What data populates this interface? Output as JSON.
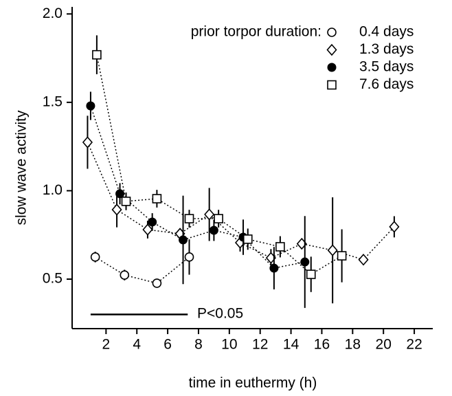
{
  "chart_data": {
    "type": "scatter",
    "xlabel": "time in euthermy (h)",
    "ylabel": "slow wave activity",
    "legend_title": "prior torpor duration:",
    "annotation": "P<0.05",
    "significance_bar": {
      "x": [
        1.0,
        7.3
      ],
      "y": 0.3
    },
    "xlim": [
      -0.2,
      23.2
    ],
    "ylim": [
      0.22,
      2.04
    ],
    "xticks": [
      2,
      4,
      6,
      8,
      10,
      12,
      14,
      16,
      18,
      20,
      22
    ],
    "yticks": [
      0.5,
      {
        "value": 1,
        "label": "1.0"
      },
      1.5,
      {
        "value": 2,
        "label": "2.0"
      }
    ],
    "series": [
      {
        "name": "0.4 days",
        "marker": "circle-open",
        "color": "#000000",
        "x": [
          1.3,
          3.2,
          5.3,
          7.4
        ],
        "values": [
          0.625,
          0.523,
          0.477,
          0.625
        ],
        "errors": [
          0.03,
          0.03,
          0.01,
          0.1
        ]
      },
      {
        "name": "1.3 days",
        "marker": "diamond-open",
        "color": "#000000",
        "x": [
          0.8,
          2.7,
          4.7,
          6.8,
          8.7,
          10.7,
          12.7,
          14.7,
          16.7,
          18.7,
          20.7
        ],
        "values": [
          1.274,
          0.893,
          0.78,
          0.757,
          0.866,
          0.706,
          0.62,
          0.7,
          0.663,
          0.61,
          0.796
        ],
        "errors": [
          0.15,
          0.1,
          0.05,
          0.03,
          0.15,
          0.05,
          0.05,
          0.02,
          0.3,
          0.02,
          0.06
        ]
      },
      {
        "name": "3.5 days",
        "marker": "circle-filled",
        "color": "#000000",
        "x": [
          1.0,
          2.9,
          5.0,
          7.0,
          9.0,
          10.9,
          12.9,
          14.9
        ],
        "values": [
          1.48,
          0.983,
          0.823,
          0.722,
          0.776,
          0.737,
          0.562,
          0.597
        ],
        "errors": [
          0.08,
          0.06,
          0.05,
          0.25,
          0.06,
          0.1,
          0.12,
          0.26
        ]
      },
      {
        "name": "7.6 days",
        "marker": "square-open",
        "color": "#000000",
        "x": [
          1.4,
          3.3,
          5.3,
          7.4,
          9.3,
          11.2,
          13.3,
          15.3,
          17.3
        ],
        "values": [
          1.769,
          0.94,
          0.955,
          0.842,
          0.842,
          0.726,
          0.683,
          0.527,
          0.632
        ],
        "errors": [
          0.11,
          0.05,
          0.05,
          0.05,
          0.05,
          0.06,
          0.06,
          0.1,
          0.15
        ]
      }
    ]
  }
}
